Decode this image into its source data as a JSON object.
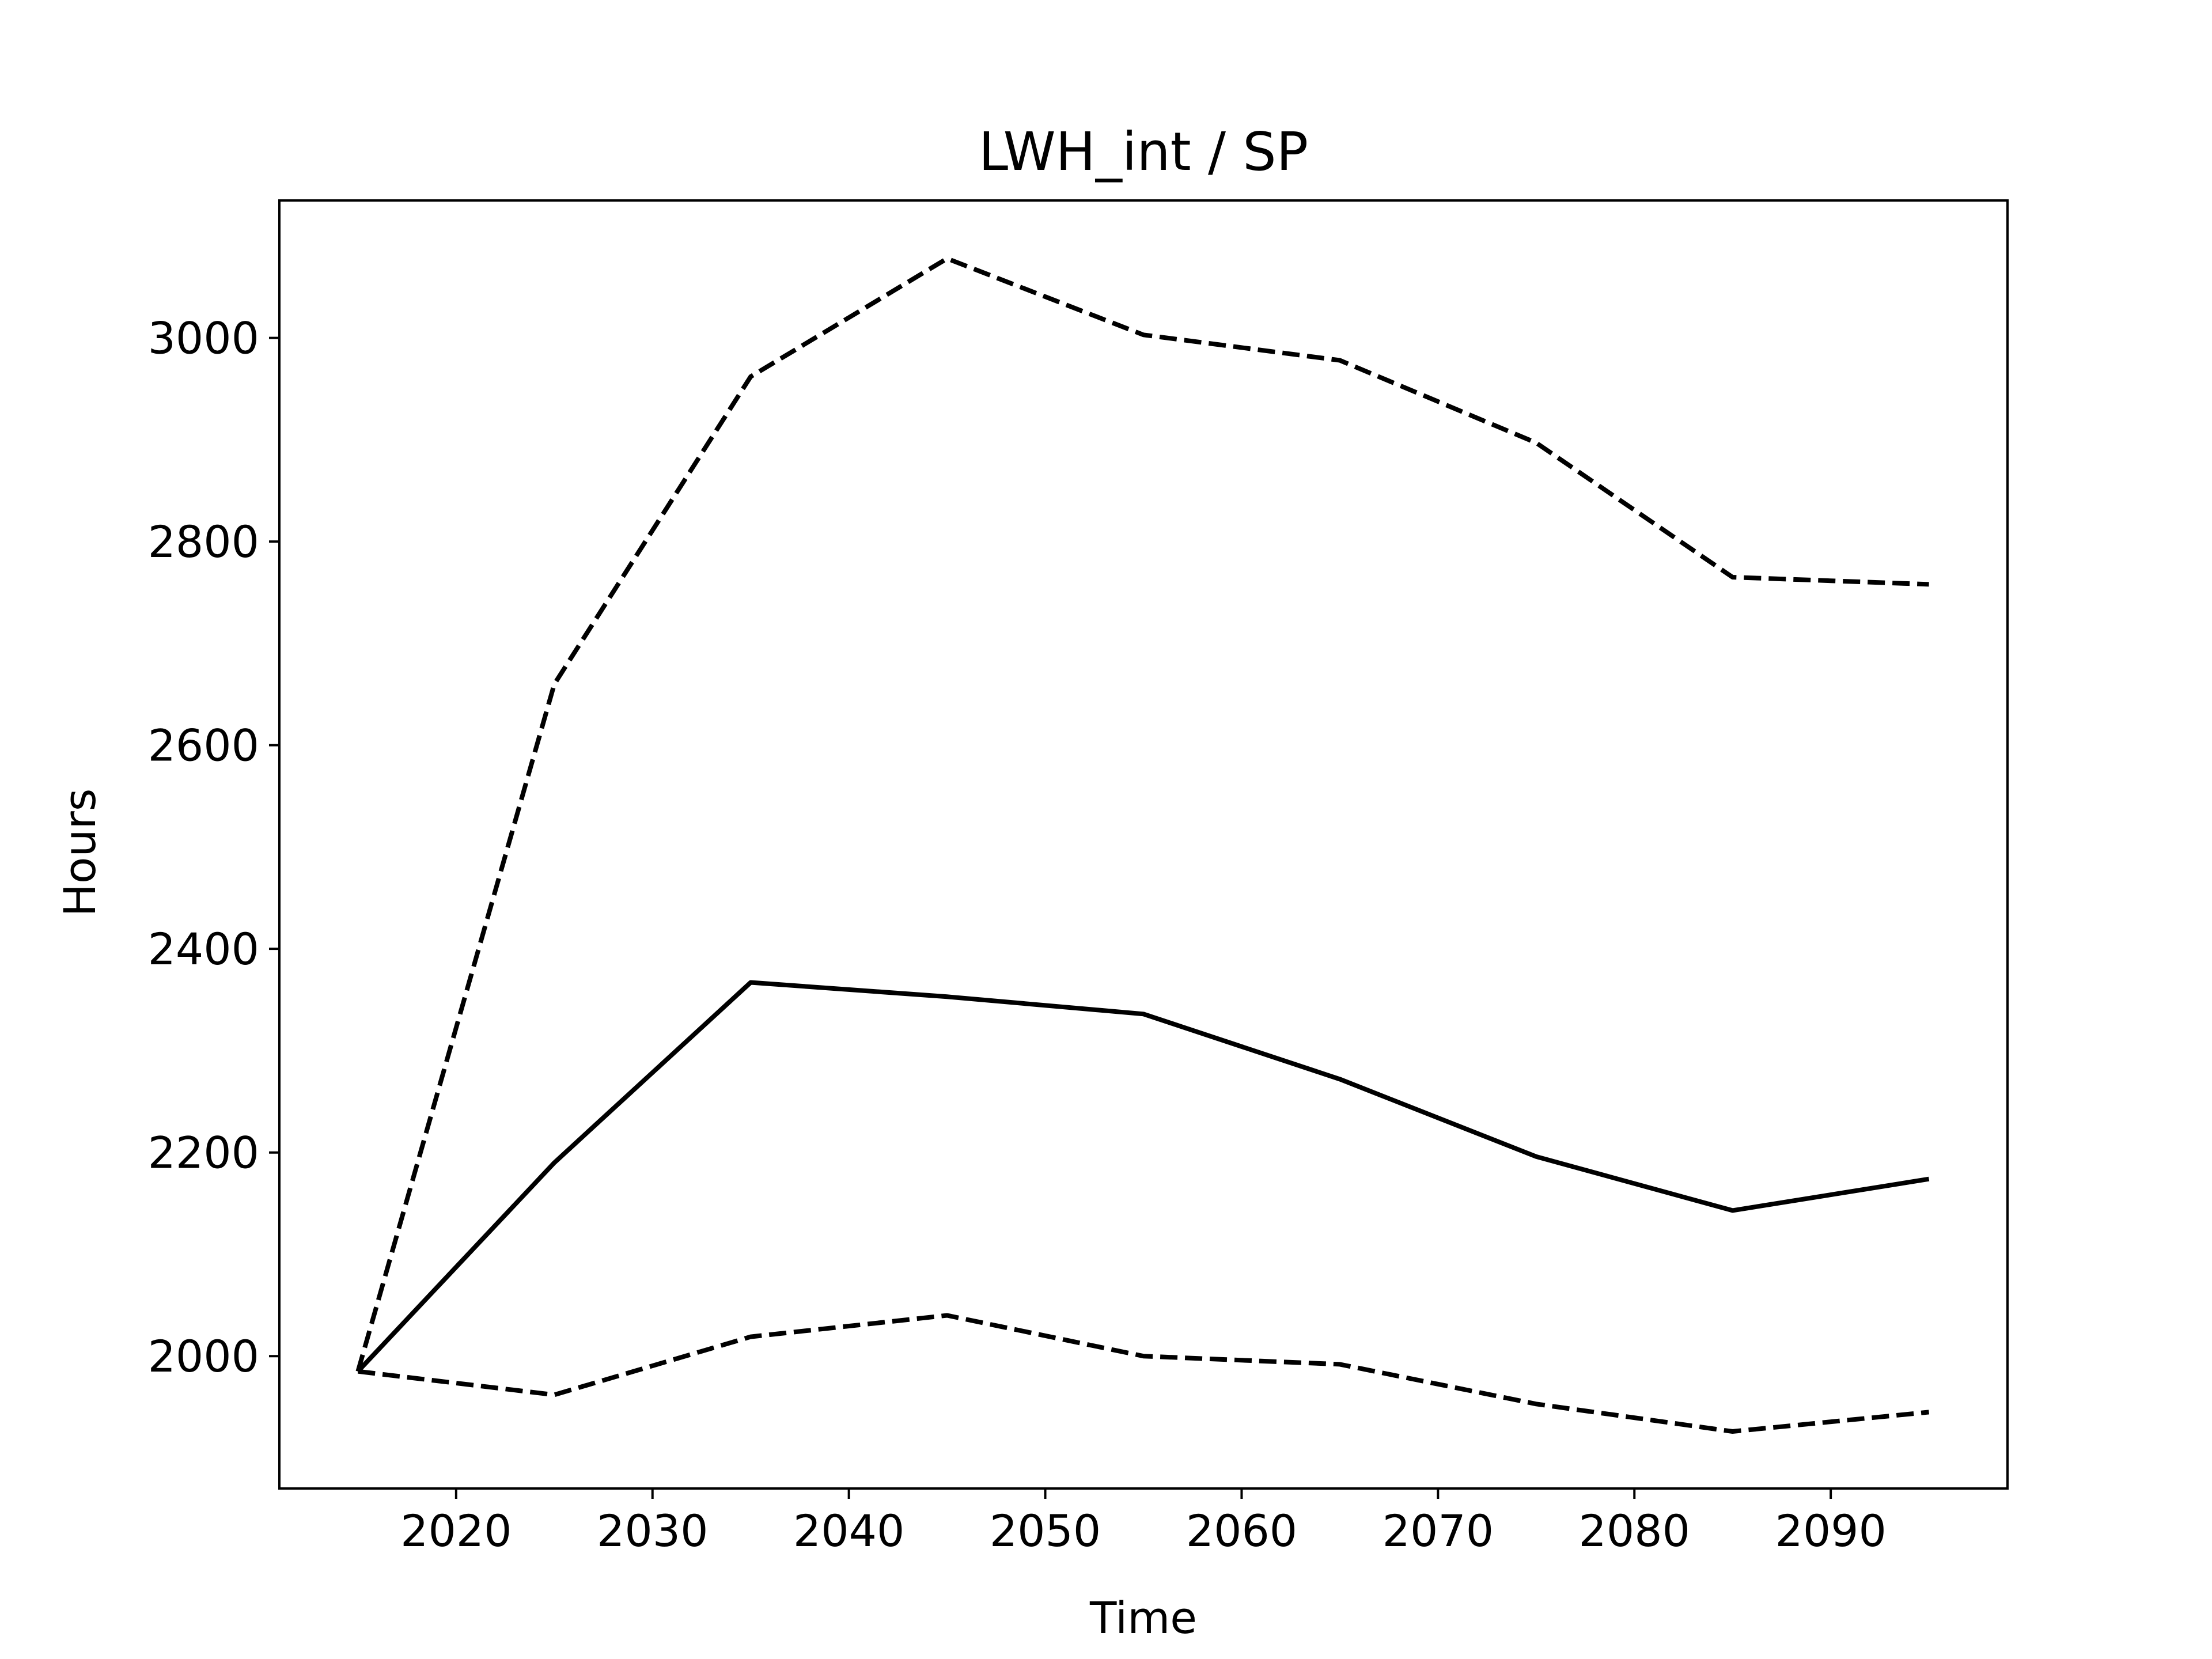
{
  "chart_data": {
    "type": "line",
    "title": "LWH_int / SP",
    "xlabel": "Time",
    "ylabel": "Hours",
    "xlim": [
      2011,
      2099
    ],
    "ylim": [
      1870,
      3135
    ],
    "xticks": [
      2020,
      2030,
      2040,
      2050,
      2060,
      2070,
      2080,
      2090
    ],
    "yticks": [
      2000,
      2200,
      2400,
      2600,
      2800,
      3000
    ],
    "grid": false,
    "x": [
      2015,
      2025,
      2035,
      2045,
      2055,
      2065,
      2075,
      2085,
      2095
    ],
    "series": [
      {
        "style": "dashed",
        "color": "#000000",
        "values": [
          1985,
          2660,
          2962,
          3078,
          3003,
          2978,
          2897,
          2765,
          2758
        ]
      },
      {
        "style": "solid",
        "color": "#000000",
        "values": [
          1985,
          2190,
          2367,
          2353,
          2336,
          2272,
          2196,
          2143,
          2174
        ]
      },
      {
        "style": "dashed",
        "color": "#000000",
        "values": [
          1985,
          1962,
          2019,
          2040,
          2000,
          1992,
          1953,
          1926,
          1945
        ]
      }
    ]
  }
}
